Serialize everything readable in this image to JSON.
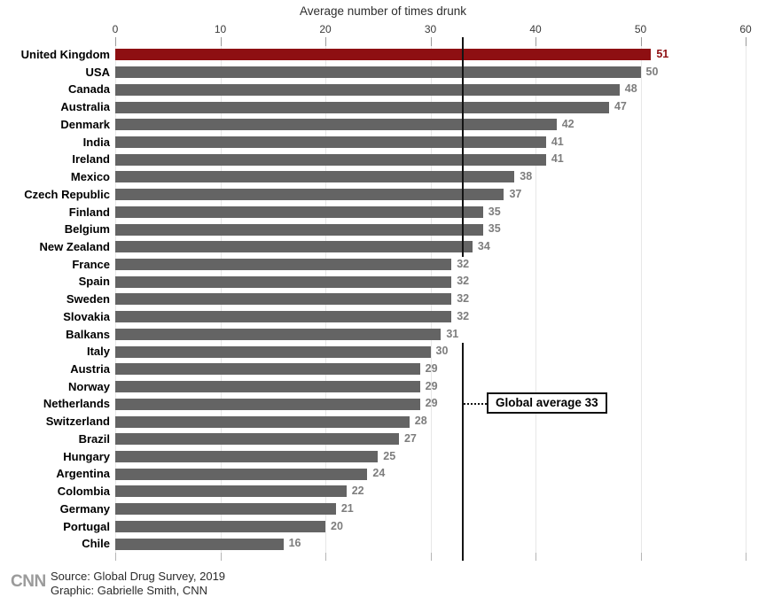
{
  "page": {
    "title": "Average number of times drunk",
    "source_line1": "Source: Global Drug Survey, 2019",
    "source_line2": "Graphic: Gabrielle Smith, CNN",
    "logo_text": "CNN"
  },
  "colors": {
    "bar_default": "#646464",
    "bar_highlight": "#8e0f12",
    "value_label": "#7d7d7d",
    "value_label_highlight": "#8e0f12",
    "gridline": "#e7e7e7",
    "average_line": "#141414"
  },
  "chart_data": {
    "type": "bar",
    "orientation": "horizontal",
    "title": "Average number of times drunk",
    "xlabel": "Average number of times drunk",
    "ylabel": "",
    "xlim": [
      0,
      60
    ],
    "x_ticks": [
      0,
      10,
      20,
      30,
      40,
      50,
      60
    ],
    "grid": true,
    "categories": [
      "United Kingdom",
      "USA",
      "Canada",
      "Australia",
      "Denmark",
      "India",
      "Ireland",
      "Mexico",
      "Czech Republic",
      "Finland",
      "Belgium",
      "New Zealand",
      "France",
      "Spain",
      "Sweden",
      "Slovakia",
      "Balkans",
      "Italy",
      "Austria",
      "Norway",
      "Netherlands",
      "Switzerland",
      "Brazil",
      "Hungary",
      "Argentina",
      "Colombia",
      "Germany",
      "Portugal",
      "Chile"
    ],
    "values": [
      51,
      50,
      48,
      47,
      42,
      41,
      41,
      38,
      37,
      35,
      35,
      34,
      32,
      32,
      32,
      32,
      31,
      30,
      29,
      29,
      29,
      28,
      27,
      25,
      24,
      22,
      21,
      20,
      16
    ],
    "highlighted_category": "United Kingdom",
    "annotation": {
      "label": "Global average 33",
      "value": 33
    }
  }
}
